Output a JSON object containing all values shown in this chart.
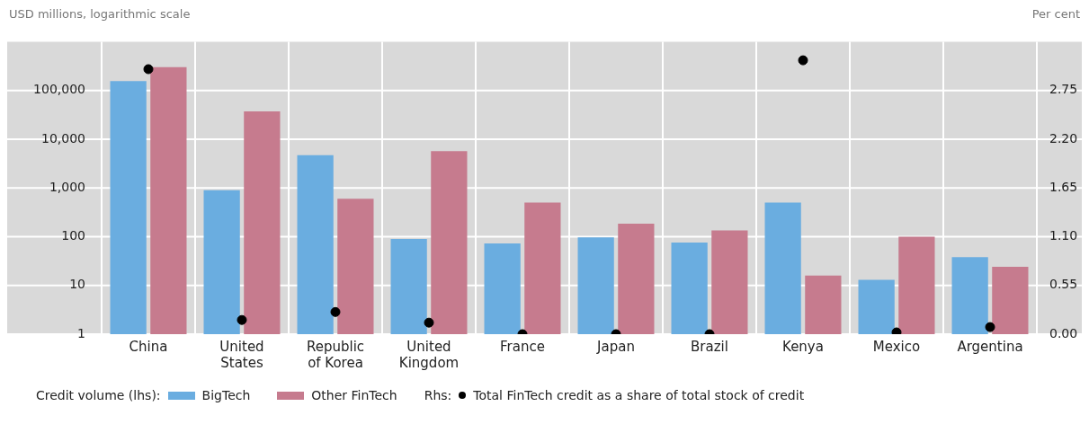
{
  "chart_data": {
    "type": "bar",
    "ylabel": "USD millions, logarithmic scale",
    "y2label": "Per cent",
    "legend_title": "Credit volume (lhs):",
    "categories": [
      "China",
      "United States",
      "Republic of Korea",
      "United Kingdom",
      "France",
      "Japan",
      "Brazil",
      "Kenya",
      "Mexico",
      "Argentina"
    ],
    "series": [
      {
        "name": "BigTech",
        "color": "#6aade0",
        "values": [
          155000,
          900,
          4700,
          90,
          73,
          97,
          76,
          500,
          13,
          38
        ]
      },
      {
        "name": "Other FinTech",
        "color": "#c67b8e",
        "values": [
          300000,
          37000,
          600,
          5700,
          500,
          185,
          134,
          16,
          100,
          24
        ]
      },
      {
        "name": "Total FinTech credit as a share of total stock of credit",
        "type": "scatter",
        "axis": "y2",
        "color": "#000000",
        "x": [
          "China",
          "United States",
          "Republic of Korea",
          "United Kingdom",
          "France",
          "Japan",
          "Brazil",
          "Kenya",
          "Mexico",
          "Argentina"
        ],
        "values": [
          2.99,
          0.16,
          0.25,
          0.13,
          0,
          0,
          0,
          3.09,
          0.02,
          0.08
        ]
      }
    ],
    "log": "y",
    "ylim": [
      1,
      1000000
    ],
    "yticks": [
      1,
      10,
      100,
      {
        "value": 1000,
        "label": "1,000"
      },
      {
        "value": 10000,
        "label": "10,000"
      },
      {
        "value": 100000,
        "label": "100,000"
      }
    ],
    "y2lim": [
      0,
      3.3
    ],
    "y2ticks": [
      {
        "value": 0,
        "label": "0.00"
      },
      0.55,
      {
        "value": 1.1,
        "label": "1.10"
      },
      1.65,
      {
        "value": 2.2,
        "label": "2.20"
      },
      2.75
    ],
    "annotations": [
      "Rhs:"
    ],
    "grid": true,
    "legend": "bottom",
    "marker": "circle"
  }
}
